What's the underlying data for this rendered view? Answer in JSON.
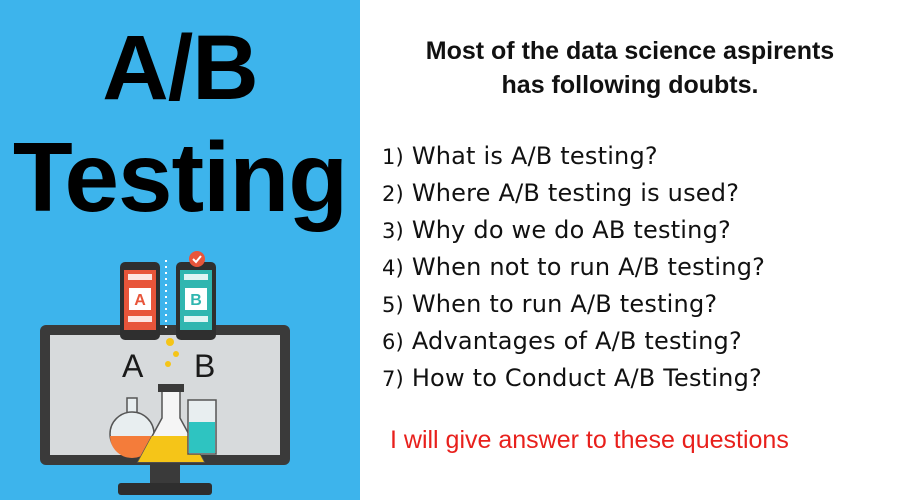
{
  "left": {
    "title_line1": "A/B",
    "title_line2": "Testing",
    "illustration": {
      "variant_a": "A",
      "variant_b": "B",
      "colors": {
        "background": "#3db4ec",
        "phone_a_accent": "#e8553a",
        "phone_b_accent": "#30b6b0",
        "check_badge": "#e8553a",
        "flask_orange": "#f47c3a",
        "flask_yellow": "#f5c518",
        "beaker_teal": "#2ec4c1"
      }
    }
  },
  "right": {
    "heading_line1": "Most of the data science aspirents",
    "heading_line2": "has following doubts.",
    "questions": [
      {
        "num": "1)",
        "text": "What is A/B testing?"
      },
      {
        "num": "2)",
        "text": "Where A/B testing is used?"
      },
      {
        "num": "3)",
        "text": "Why do we do AB testing?"
      },
      {
        "num": "4)",
        "text": "When not to run A/B testing?"
      },
      {
        "num": "5)",
        "text": "When to run A/B testing?"
      },
      {
        "num": "6)",
        "text": "Advantages of A/B testing?"
      },
      {
        "num": "7)",
        "text": "How to Conduct A/B Testing?"
      }
    ],
    "footer": "I will give answer to these questions",
    "footer_color": "#e8201c"
  }
}
